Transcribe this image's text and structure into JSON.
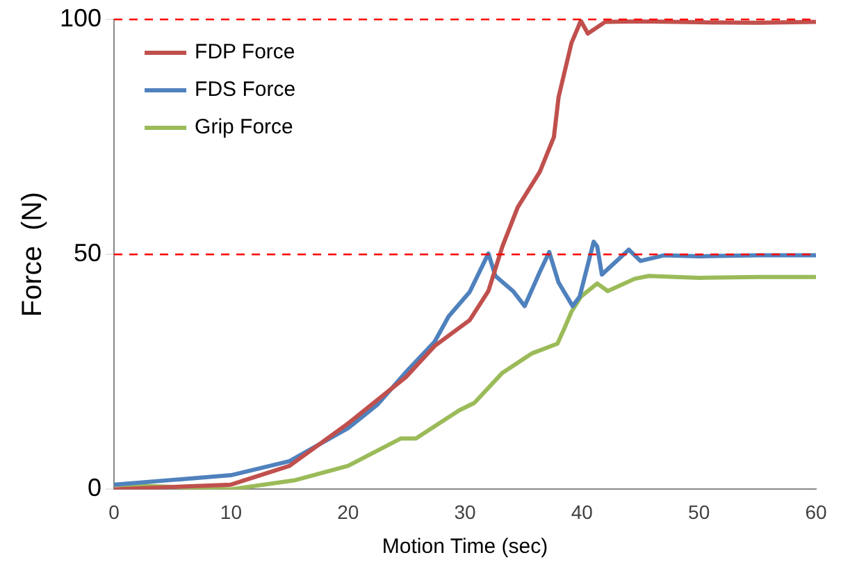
{
  "chart_data": {
    "type": "line",
    "xlabel": "Motion Time (sec)",
    "ylabel": "Force  (N)",
    "xlim": [
      0,
      60
    ],
    "xticks": [
      0,
      10,
      20,
      30,
      40,
      50,
      60
    ],
    "ylim": [
      0,
      100
    ],
    "yticks": [
      0,
      50,
      100
    ],
    "grid": false,
    "legend": "top left",
    "marker": "none",
    "line_style": "solid",
    "ref_lines": [
      {
        "axis": "y",
        "value": 100,
        "color": "#ff0000",
        "line_style": "dashed"
      },
      {
        "axis": "y",
        "value": 50,
        "color": "#ff0000",
        "line_style": "dashed"
      }
    ],
    "series": [
      {
        "name": "FDP Force",
        "color": "#c0504d",
        "x": [
          0,
          5,
          10,
          15,
          20,
          25,
          27.4,
          30.4,
          32,
          33.2,
          34.5,
          36.4,
          37.6,
          38,
          39.1,
          39.9,
          40.5,
          42,
          45,
          50,
          55,
          60
        ],
        "values": [
          0,
          0.5,
          1,
          5,
          14,
          24,
          30.5,
          36,
          42.2,
          51.7,
          60,
          67.6,
          75,
          83.5,
          95,
          99.7,
          97,
          99.5,
          99.6,
          99.4,
          99.3,
          99.5
        ]
      },
      {
        "name": "FDS Force",
        "color": "#4f81bd",
        "x": [
          0,
          5,
          10,
          15,
          20,
          22.5,
          24.9,
          27.4,
          28.6,
          30.4,
          32,
          32.6,
          34.1,
          35.1,
          36.4,
          37.2,
          38,
          39.2,
          39.8,
          41,
          41.3,
          41.7,
          44,
          45,
          47,
          50,
          55,
          60
        ],
        "values": [
          1,
          2,
          3,
          6,
          13,
          18,
          24.8,
          31.4,
          36.8,
          42,
          50.2,
          45.4,
          42.2,
          39,
          46.3,
          50.5,
          44,
          39,
          41,
          52.7,
          51.7,
          45.7,
          51,
          48.6,
          49.8,
          49.6,
          49.8,
          49.8
        ]
      },
      {
        "name": "Grip Force",
        "color": "#9bbb59",
        "x": [
          0,
          5,
          10,
          15.4,
          20,
          24.5,
          25.8,
          29.5,
          30.8,
          33.2,
          35.7,
          37.9,
          38.5,
          39.1,
          39.9,
          41.3,
          42.2,
          44.5,
          45.7,
          50,
          55,
          60
        ],
        "values": [
          1,
          0.5,
          0,
          1.9,
          5,
          10.8,
          10.8,
          16.8,
          18.4,
          24.8,
          28.9,
          31,
          34.3,
          37.8,
          41,
          43.8,
          42.2,
          44.8,
          45.4,
          45,
          45.2,
          45.2
        ]
      }
    ]
  }
}
